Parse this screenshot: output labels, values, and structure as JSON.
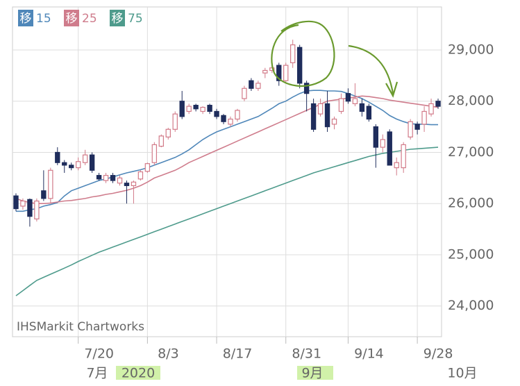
{
  "chart_data": {
    "type": "candlestick",
    "legend_badge": "移",
    "source": "IHSMarkit Chartworks",
    "ylim": [
      23400,
      29840
    ],
    "yticks": [
      {
        "value": 24000,
        "label": "24,000"
      },
      {
        "value": 25000,
        "label": "25,000"
      },
      {
        "value": 26000,
        "label": "26,000"
      },
      {
        "value": 27000,
        "label": "27,000"
      },
      {
        "value": 28000,
        "label": "28,000"
      },
      {
        "value": 29000,
        "label": "29,000"
      }
    ],
    "xlim": [
      -0.5,
      61.5
    ],
    "xticks": [
      {
        "value": 9,
        "label": "7/20"
      },
      {
        "value": 19,
        "label": "8/3"
      },
      {
        "value": 29,
        "label": "8/17"
      },
      {
        "value": 39,
        "label": "8/31"
      },
      {
        "value": 48,
        "label": "9/14"
      },
      {
        "value": 58,
        "label": "9/28"
      }
    ],
    "month_labels": [
      "7月",
      "2020",
      "9月",
      "10月"
    ],
    "up_color": "#d27a88",
    "down_color": "#1f2d5c",
    "candles": {
      "open": [
        26150,
        25950,
        26080,
        25700,
        26250,
        26100,
        27000,
        26800,
        26750,
        26700,
        26800,
        26950,
        26550,
        26450,
        26550,
        26400,
        26400,
        26350,
        26480,
        26630,
        26800,
        27120,
        27300,
        27450,
        28000,
        27800,
        27920,
        27800,
        27920,
        27800,
        27720,
        27550,
        27650,
        28050,
        28400,
        28250,
        28550,
        28600,
        28700,
        28400,
        28750,
        29050,
        28350,
        27950,
        27750,
        27950,
        27550,
        27800,
        28150,
        27950,
        27950,
        27900,
        27500,
        27100,
        27400,
        26700,
        26700,
        27300,
        27550,
        27550,
        27750,
        28000
      ],
      "high": [
        26200,
        26100,
        26100,
        26100,
        26650,
        26700,
        27100,
        26850,
        26800,
        26900,
        27050,
        27000,
        26600,
        26600,
        26600,
        26550,
        26450,
        26450,
        26650,
        26800,
        27200,
        27350,
        27480,
        27800,
        28200,
        27950,
        27950,
        27900,
        27950,
        27850,
        27750,
        27700,
        27850,
        28300,
        28450,
        28400,
        28650,
        28700,
        28750,
        28750,
        29200,
        29100,
        28400,
        28050,
        28050,
        28200,
        27700,
        28150,
        28250,
        28350,
        28050,
        27950,
        27550,
        27350,
        27450,
        26900,
        27200,
        27650,
        27600,
        27900,
        28050,
        28050
      ],
      "low": [
        25850,
        25880,
        25550,
        25650,
        26050,
        26000,
        26750,
        26600,
        26650,
        26650,
        26750,
        26600,
        26450,
        26400,
        26400,
        26350,
        26000,
        26000,
        26450,
        26600,
        26750,
        27100,
        27250,
        27400,
        27650,
        27750,
        27800,
        27750,
        27750,
        27650,
        27550,
        27500,
        27600,
        28000,
        28200,
        28200,
        28450,
        28550,
        28300,
        28350,
        28650,
        28250,
        27800,
        27400,
        27700,
        27400,
        27450,
        27750,
        27950,
        27900,
        27700,
        27600,
        26700,
        27000,
        26750,
        26550,
        26600,
        27250,
        27350,
        27400,
        27700,
        27850
      ],
      "close": [
        25900,
        26050,
        25750,
        26050,
        26100,
        26650,
        26800,
        26750,
        26700,
        26820,
        26950,
        26650,
        26480,
        26550,
        26450,
        26500,
        26350,
        26420,
        26620,
        26780,
        27150,
        27320,
        27450,
        27750,
        27700,
        27900,
        27850,
        27880,
        27800,
        27700,
        27600,
        27650,
        27820,
        28250,
        28250,
        28350,
        28600,
        28650,
        28400,
        28700,
        29100,
        28350,
        28150,
        27450,
        27950,
        27500,
        27650,
        28050,
        28000,
        28050,
        27800,
        27650,
        27100,
        27250,
        26750,
        26800,
        27150,
        27600,
        27450,
        27800,
        27950,
        27900
      ]
    },
    "series": [
      {
        "name": "15",
        "color": "#4f87b9",
        "values": [
          25850,
          25850,
          25880,
          25900,
          25950,
          25980,
          26020,
          26150,
          26250,
          26300,
          26350,
          26400,
          26450,
          26480,
          26520,
          26560,
          26600,
          26630,
          26660,
          26700,
          26750,
          26800,
          26850,
          26900,
          26970,
          27050,
          27150,
          27250,
          27330,
          27400,
          27450,
          27500,
          27550,
          27600,
          27650,
          27700,
          27780,
          27860,
          27950,
          28000,
          28080,
          28150,
          28200,
          28210,
          28210,
          28200,
          28200,
          28190,
          28150,
          28100,
          28050,
          27980,
          27900,
          27820,
          27720,
          27650,
          27600,
          27560,
          27550,
          27550,
          27540,
          27540
        ]
      },
      {
        "name": "25",
        "color": "#cf7c8c",
        "values": [
          26100,
          26050,
          26020,
          26000,
          26000,
          26010,
          26030,
          26050,
          26060,
          26080,
          26100,
          26130,
          26150,
          26180,
          26200,
          26230,
          26260,
          26300,
          26350,
          26420,
          26500,
          26550,
          26600,
          26650,
          26720,
          26800,
          26860,
          26920,
          26980,
          27040,
          27100,
          27160,
          27220,
          27280,
          27340,
          27400,
          27460,
          27520,
          27580,
          27640,
          27700,
          27760,
          27820,
          27880,
          27940,
          28000,
          28020,
          28040,
          28060,
          28080,
          28100,
          28090,
          28070,
          28050,
          28020,
          28000,
          27980,
          27960,
          27940,
          27920,
          27900,
          27880
        ]
      },
      {
        "name": "75",
        "color": "#4e9b8c",
        "values": [
          24200,
          24300,
          24400,
          24500,
          24560,
          24620,
          24680,
          24740,
          24800,
          24870,
          24930,
          24990,
          25050,
          25100,
          25150,
          25200,
          25250,
          25300,
          25350,
          25400,
          25450,
          25500,
          25550,
          25600,
          25650,
          25700,
          25750,
          25800,
          25850,
          25900,
          25950,
          26000,
          26050,
          26100,
          26150,
          26200,
          26250,
          26300,
          26350,
          26400,
          26450,
          26500,
          26550,
          26600,
          26640,
          26680,
          26720,
          26760,
          26800,
          26840,
          26880,
          26920,
          26950,
          26980,
          27000,
          27020,
          27040,
          27060,
          27070,
          27080,
          27090,
          27100
        ]
      }
    ]
  }
}
